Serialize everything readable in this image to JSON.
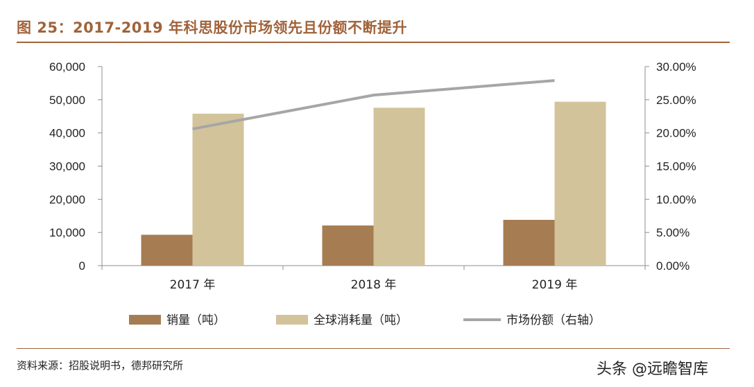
{
  "header": {
    "title": "图 25：2017-2019 年科思股份市场领先且份额不断提升"
  },
  "footer": {
    "source": "资料来源：招股说明书，德邦研究所",
    "watermark": "头条 @远瞻智库"
  },
  "chart_data": {
    "type": "bar",
    "categories": [
      "2017 年",
      "2018 年",
      "2019 年"
    ],
    "series": [
      {
        "name": "销量（吨）",
        "type": "bar",
        "axis": "left",
        "color": "#a67c52",
        "values": [
          9300,
          12100,
          13800
        ]
      },
      {
        "name": "全球消耗量（吨）",
        "type": "bar",
        "axis": "left",
        "color": "#d3c39a",
        "values": [
          45800,
          47600,
          49400
        ]
      },
      {
        "name": "市场份额（右轴）",
        "type": "line",
        "axis": "right",
        "color": "#a6a6a6",
        "values": [
          0.206,
          0.257,
          0.279
        ]
      }
    ],
    "left_axis": {
      "ylim": [
        0,
        60000
      ],
      "ticks": [
        0,
        10000,
        20000,
        30000,
        40000,
        50000,
        60000
      ],
      "tick_labels": [
        "0",
        "10,000",
        "20,000",
        "30,000",
        "40,000",
        "50,000",
        "60,000"
      ]
    },
    "right_axis": {
      "ylim": [
        0,
        0.3
      ],
      "ticks": [
        0,
        0.05,
        0.1,
        0.15,
        0.2,
        0.25,
        0.3
      ],
      "tick_labels": [
        "0.00%",
        "5.00%",
        "10.00%",
        "15.00%",
        "20.00%",
        "25.00%",
        "30.00%"
      ]
    },
    "grid": false,
    "legend_position": "bottom"
  }
}
